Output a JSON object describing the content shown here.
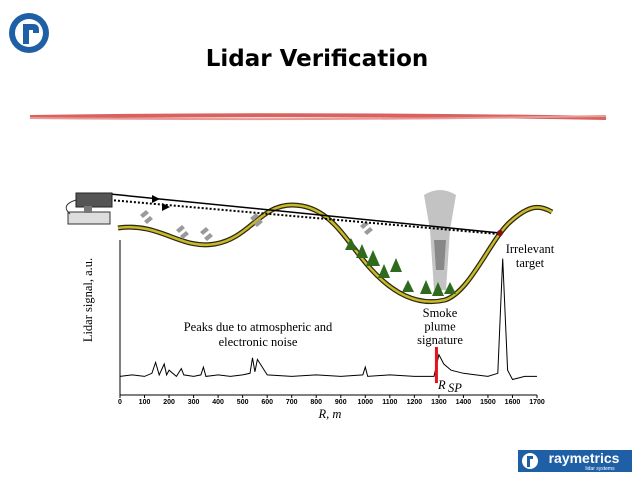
{
  "header": {
    "title": "Lidar Verification"
  },
  "logo": {
    "name": "raymetrics",
    "tagline": "lidar systems"
  },
  "chart_data": {
    "type": "line",
    "xlabel": "R, m",
    "ylabel": "Lidar signal, a.u.",
    "x": [
      0,
      50,
      100,
      130,
      145,
      160,
      180,
      190,
      200,
      230,
      250,
      260,
      300,
      330,
      340,
      350,
      400,
      450,
      500,
      530,
      540,
      550,
      560,
      600,
      700,
      800,
      900,
      990,
      1000,
      1010,
      1100,
      1200,
      1280,
      1300,
      1320,
      1350,
      1400,
      1450,
      1500,
      1540,
      1560,
      1580,
      1600,
      1650,
      1700
    ],
    "values": [
      1.2,
      1.3,
      1.2,
      1.4,
      2.1,
      1.3,
      2.0,
      1.3,
      1.6,
      1.2,
      1.7,
      1.3,
      1.2,
      1.3,
      1.8,
      1.2,
      1.3,
      1.2,
      1.3,
      1.4,
      2.4,
      1.5,
      2.3,
      1.3,
      1.2,
      1.3,
      1.2,
      1.3,
      1.8,
      1.2,
      1.3,
      1.2,
      1.2,
      2.6,
      2.0,
      1.6,
      1.4,
      1.3,
      1.2,
      1.4,
      8.8,
      1.6,
      1.0,
      1.2,
      1.2
    ],
    "color": "#000000",
    "xlim": [
      0,
      1700
    ],
    "ylim": [
      0,
      10
    ],
    "xticks": [
      0,
      100,
      200,
      300,
      400,
      500,
      600,
      700,
      800,
      900,
      1000,
      1100,
      1200,
      1300,
      1400,
      1500,
      1600,
      1700
    ],
    "smoke_marker_x": 1290,
    "smoke_marker_color": "#e8101a",
    "annotations": [
      {
        "lines": [
          "Peaks due to atmospheric and",
          "electronic noise"
        ]
      },
      {
        "lines": [
          "Smoke",
          "plume",
          "signature"
        ]
      },
      {
        "lines": [
          "Irrelevant",
          "target"
        ]
      }
    ],
    "marker_label": {
      "text": "R",
      "sub": "SP"
    }
  }
}
